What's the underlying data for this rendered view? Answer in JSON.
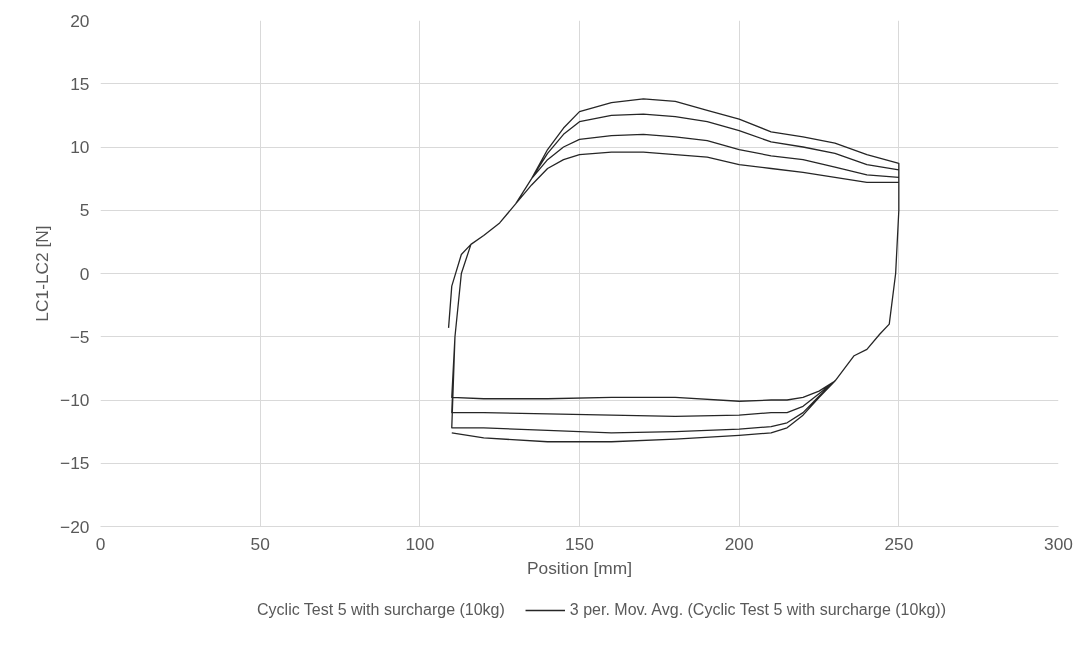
{
  "chart_data": {
    "type": "line",
    "xlabel": "Position [mm]",
    "ylabel": "LC1-LC2 [N]",
    "xlim": [
      0,
      300
    ],
    "xticks": [
      0,
      50,
      100,
      150,
      200,
      250,
      300
    ],
    "ylim": [
      -20,
      20
    ],
    "yticks": [
      -20,
      -15,
      -10,
      -5,
      0,
      5,
      10,
      15,
      20
    ],
    "grid": true,
    "legend": "bottom",
    "series": [
      {
        "name": "Cyclic Test 5 with surcharge (10kg)"
      },
      {
        "name": "3 per. Mov. Avg. (Cyclic Test 5 with surcharge (10kg))",
        "color": "#262626",
        "line_style": "solid",
        "x": [
          109,
          110,
          113,
          116,
          120,
          125,
          130,
          135,
          140,
          145,
          150,
          160,
          170,
          180,
          190,
          200,
          210,
          220,
          230,
          240,
          250,
          250,
          249,
          247,
          244,
          240,
          236,
          230,
          225,
          220,
          215,
          210,
          200,
          180,
          160,
          140,
          120,
          110,
          110,
          111,
          113,
          116,
          120,
          125,
          130,
          135,
          140,
          145,
          150,
          160,
          170,
          180,
          190,
          200,
          210,
          220,
          230,
          240,
          250,
          250,
          249,
          247,
          244,
          240,
          236,
          230,
          225,
          220,
          215,
          210,
          200,
          180,
          160,
          140,
          120,
          110,
          110,
          111,
          113,
          116,
          120,
          125,
          130,
          135,
          140,
          145,
          150,
          160,
          170,
          180,
          190,
          200,
          210,
          220,
          230,
          240,
          250,
          250,
          249,
          247,
          244,
          240,
          236,
          230,
          225,
          220,
          215,
          210,
          200,
          180,
          160,
          140,
          120,
          110,
          110,
          111,
          113,
          116,
          120,
          125,
          130,
          135,
          140,
          145,
          150,
          160,
          170,
          180,
          190,
          200,
          210,
          220,
          230,
          240,
          250,
          250,
          249,
          247,
          244,
          240,
          236,
          230,
          225,
          220,
          215,
          210,
          200,
          180,
          160,
          140,
          120,
          110
        ],
        "values": [
          -4.3,
          -1,
          1.5,
          2.3,
          3,
          4,
          5.5,
          7,
          8.3,
          9,
          9.4,
          9.6,
          9.6,
          9.4,
          9.2,
          8.6,
          8.3,
          8,
          7.6,
          7.2,
          7.2,
          5,
          0,
          -4,
          -4.8,
          -6,
          -6.5,
          -8.5,
          -9.3,
          -9.8,
          -10,
          -10,
          -10.1,
          -9.8,
          -9.8,
          -9.9,
          -9.9,
          -9.8,
          -9.8,
          -5,
          0,
          2.3,
          3,
          4,
          5.5,
          7.5,
          9,
          10,
          10.6,
          10.9,
          11,
          10.8,
          10.5,
          9.8,
          9.3,
          9,
          8.4,
          7.8,
          7.6,
          5,
          0,
          -4,
          -4.8,
          -6,
          -6.5,
          -8.5,
          -9.5,
          -10.5,
          -11,
          -11,
          -11.2,
          -11.3,
          -11.2,
          -11.1,
          -11,
          -11,
          -11,
          -5,
          0,
          2.3,
          3,
          4,
          5.5,
          7.5,
          9.5,
          11,
          12,
          12.5,
          12.6,
          12.4,
          12,
          11.3,
          10.4,
          10,
          9.5,
          8.6,
          8.2,
          5,
          0,
          -4,
          -4.8,
          -6,
          -6.5,
          -8.5,
          -9.7,
          -11,
          -11.8,
          -12.1,
          -12.3,
          -12.5,
          -12.6,
          -12.4,
          -12.2,
          -12.2,
          -12.2,
          -5,
          0,
          2.3,
          3,
          4,
          5.5,
          7.5,
          9.8,
          11.5,
          12.8,
          13.5,
          13.8,
          13.6,
          12.9,
          12.2,
          11.2,
          10.8,
          10.3,
          9.4,
          8.7,
          5,
          0,
          -4,
          -4.8,
          -6,
          -6.5,
          -8.5,
          -9.8,
          -11.2,
          -12.2,
          -12.6,
          -12.8,
          -13.1,
          -13.3,
          -13.3,
          -13,
          -12.6
        ]
      }
    ]
  }
}
